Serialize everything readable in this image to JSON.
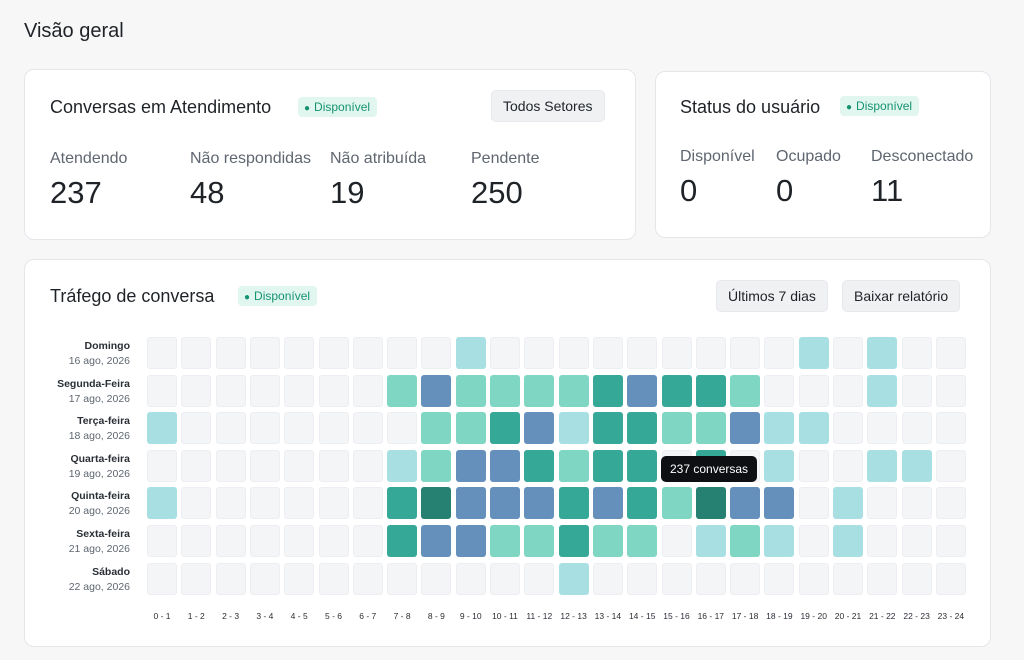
{
  "page": {
    "title": "Visão geral"
  },
  "colors": {
    "empty": "#f4f5f7",
    "light": "#a8dfe3",
    "mint": "#7fd6c2",
    "teal": "#36a898",
    "darkteal": "#278173",
    "blue": "#6590bc",
    "badge_text": "#15936f",
    "badge_bg": "#e2f6f0"
  },
  "conversas": {
    "title": "Conversas em Atendimento",
    "badge": "Disponível",
    "filter_button": "Todos Setores",
    "metrics": [
      {
        "label": "Atendendo",
        "value": "237"
      },
      {
        "label": "Não respondidas",
        "value": "48"
      },
      {
        "label": "Não atribuída",
        "value": "19"
      },
      {
        "label": "Pendente",
        "value": "250"
      }
    ]
  },
  "status": {
    "title": "Status do usuário",
    "badge": "Disponível",
    "metrics": [
      {
        "label": "Disponível",
        "value": "0"
      },
      {
        "label": "Ocupado",
        "value": "0"
      },
      {
        "label": "Desconectado",
        "value": "11"
      }
    ]
  },
  "trafego": {
    "title": "Tráfego de conversa",
    "badge": "Disponível",
    "range_button": "Últimos 7 dias",
    "download_button": "Baixar relatório",
    "tooltip": "237 conversas",
    "days": [
      {
        "name": "Domingo",
        "date": "16 ago, 2026"
      },
      {
        "name": "Segunda-Feira",
        "date": "17 ago, 2026"
      },
      {
        "name": "Terça-feira",
        "date": "18 ago, 2026"
      },
      {
        "name": "Quarta-feira",
        "date": "19 ago, 2026"
      },
      {
        "name": "Quinta-feira",
        "date": "20 ago, 2026"
      },
      {
        "name": "Sexta-feira",
        "date": "21 ago, 2026"
      },
      {
        "name": "Sábado",
        "date": "22 ago, 2026"
      }
    ],
    "hours": [
      "0 - 1",
      "1 - 2",
      "2 - 3",
      "3 - 4",
      "4 - 5",
      "5 - 6",
      "6 - 7",
      "7 - 8",
      "8 - 9",
      "9 - 10",
      "10 - 11",
      "11 - 12",
      "12 - 13",
      "13 - 14",
      "14 - 15",
      "15 - 16",
      "16 - 17",
      "17 - 18",
      "18 - 19",
      "19 - 20",
      "20 - 21",
      "21 - 22",
      "22 - 23",
      "23 - 24"
    ],
    "heat_levels": [
      [
        0,
        0,
        0,
        0,
        0,
        0,
        0,
        0,
        0,
        1,
        0,
        0,
        0,
        0,
        0,
        0,
        0,
        0,
        0,
        1,
        0,
        1,
        0,
        0
      ],
      [
        0,
        0,
        0,
        0,
        0,
        0,
        0,
        2,
        5,
        2,
        2,
        2,
        2,
        3,
        5,
        3,
        3,
        2,
        0,
        0,
        0,
        1,
        0,
        0
      ],
      [
        1,
        0,
        0,
        0,
        0,
        0,
        0,
        0,
        2,
        2,
        3,
        5,
        1,
        3,
        3,
        2,
        2,
        5,
        1,
        1,
        0,
        0,
        0,
        0
      ],
      [
        0,
        0,
        0,
        0,
        0,
        0,
        0,
        1,
        2,
        5,
        5,
        3,
        2,
        3,
        3,
        0,
        3,
        0,
        1,
        0,
        0,
        1,
        1,
        0
      ],
      [
        1,
        0,
        0,
        0,
        0,
        0,
        0,
        3,
        4,
        5,
        5,
        5,
        3,
        5,
        3,
        2,
        4,
        5,
        5,
        0,
        1,
        0,
        0,
        0
      ],
      [
        0,
        0,
        0,
        0,
        0,
        0,
        0,
        3,
        5,
        5,
        2,
        2,
        3,
        2,
        2,
        0,
        1,
        2,
        1,
        0,
        1,
        0,
        0,
        0
      ],
      [
        0,
        0,
        0,
        0,
        0,
        0,
        0,
        0,
        0,
        0,
        0,
        0,
        1,
        0,
        0,
        0,
        0,
        0,
        0,
        0,
        0,
        0,
        0,
        0
      ]
    ]
  }
}
